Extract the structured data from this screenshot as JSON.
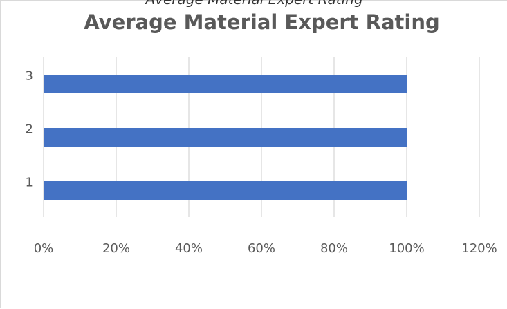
{
  "page": {
    "clipped_caption": "Average Material Expert Rating"
  },
  "chart_data": {
    "type": "bar",
    "orientation": "horizontal",
    "title": "Average Material Expert Rating",
    "categories": [
      "1",
      "2",
      "3"
    ],
    "series": [
      {
        "values": [
          1.0,
          1.0,
          1.0
        ],
        "color": "#4472c4"
      }
    ],
    "x_ticks": [
      "0%",
      "20%",
      "40%",
      "60%",
      "80%",
      "100%",
      "120%"
    ],
    "xlim": [
      0,
      1.2
    ],
    "xlabel": "",
    "ylabel": "",
    "grid": "vertical",
    "legend": "none",
    "gridline_color": "#d9d9d9"
  }
}
